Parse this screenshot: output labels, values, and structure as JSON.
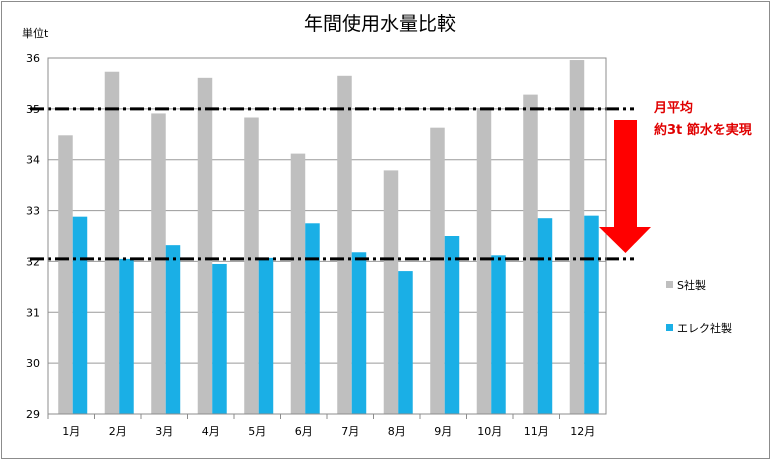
{
  "chart_data": {
    "type": "bar",
    "title": "年間使用水量比較",
    "ylabel": "単位t",
    "xlabel": "",
    "categories": [
      "1月",
      "2月",
      "3月",
      "4月",
      "5月",
      "6月",
      "7月",
      "8月",
      "9月",
      "10月",
      "11月",
      "12月"
    ],
    "series": [
      {
        "name": "S社製",
        "color": "#bfbfbf",
        "values": [
          34.48,
          35.73,
          34.91,
          35.61,
          34.83,
          34.12,
          35.65,
          33.79,
          34.63,
          35.0,
          35.28,
          35.96
        ]
      },
      {
        "name": "エレク社製",
        "color": "#1aafe6",
        "values": [
          32.88,
          32.05,
          32.32,
          31.95,
          32.07,
          32.75,
          32.18,
          31.81,
          32.5,
          32.12,
          32.85,
          32.9
        ]
      }
    ],
    "ylim": [
      29,
      36
    ],
    "yticks": [
      29,
      30,
      31,
      32,
      33,
      34,
      35,
      36
    ],
    "grid": true,
    "legend": "right",
    "reference_lines": [
      {
        "value": 35,
        "style": "dash-dot"
      },
      {
        "value": 32.05,
        "style": "dash-dot"
      }
    ],
    "annotation": {
      "line1": "月平均",
      "line2": "約3t 節水を実現",
      "arrow_color": "#ff0000"
    }
  }
}
